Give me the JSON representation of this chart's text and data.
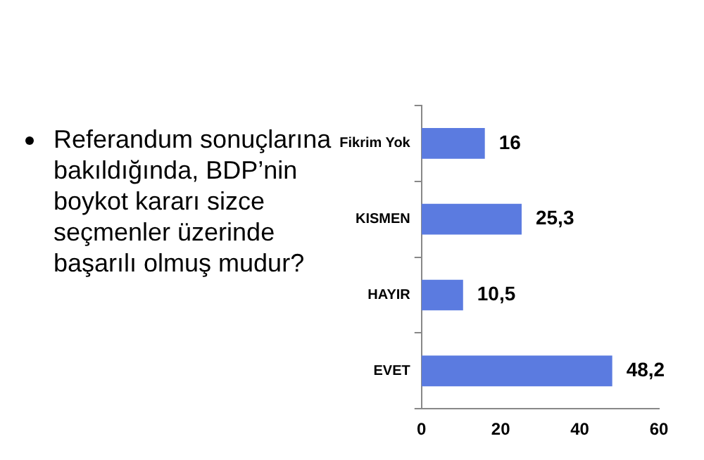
{
  "chart_data": {
    "type": "bar",
    "orientation": "horizontal",
    "title": "Referandum sonuçlarına bakıldığında, BDP’nin boykot kararı sizce seçmenler üzerinde başarılı olmuş mudur?",
    "categories": [
      "Fikrim Yok",
      "KISMEN",
      "HAYIR",
      "EVET"
    ],
    "values": [
      16,
      25.3,
      10.5,
      48.2
    ],
    "value_labels": [
      "16",
      "25,3",
      "10,5",
      "48,2"
    ],
    "color": "#5b7be0",
    "xlim": [
      0,
      60
    ],
    "xticks": [
      0,
      20,
      40,
      60
    ],
    "grid": false,
    "legend": false
  }
}
